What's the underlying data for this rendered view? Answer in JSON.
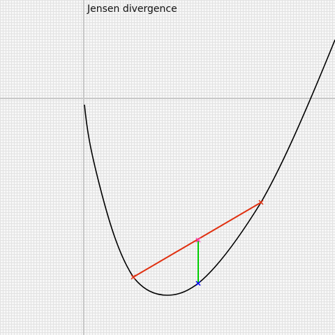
{
  "title": "Jensen divergence",
  "colors": {
    "axes": "#c8c8c8",
    "curve": "#000000",
    "chord": "#e03010",
    "endpoints": "#e03010",
    "chord_midpoint": "#ff40c0",
    "curve_midpoint": "#0000ff",
    "gap": "#00cc00"
  }
}
